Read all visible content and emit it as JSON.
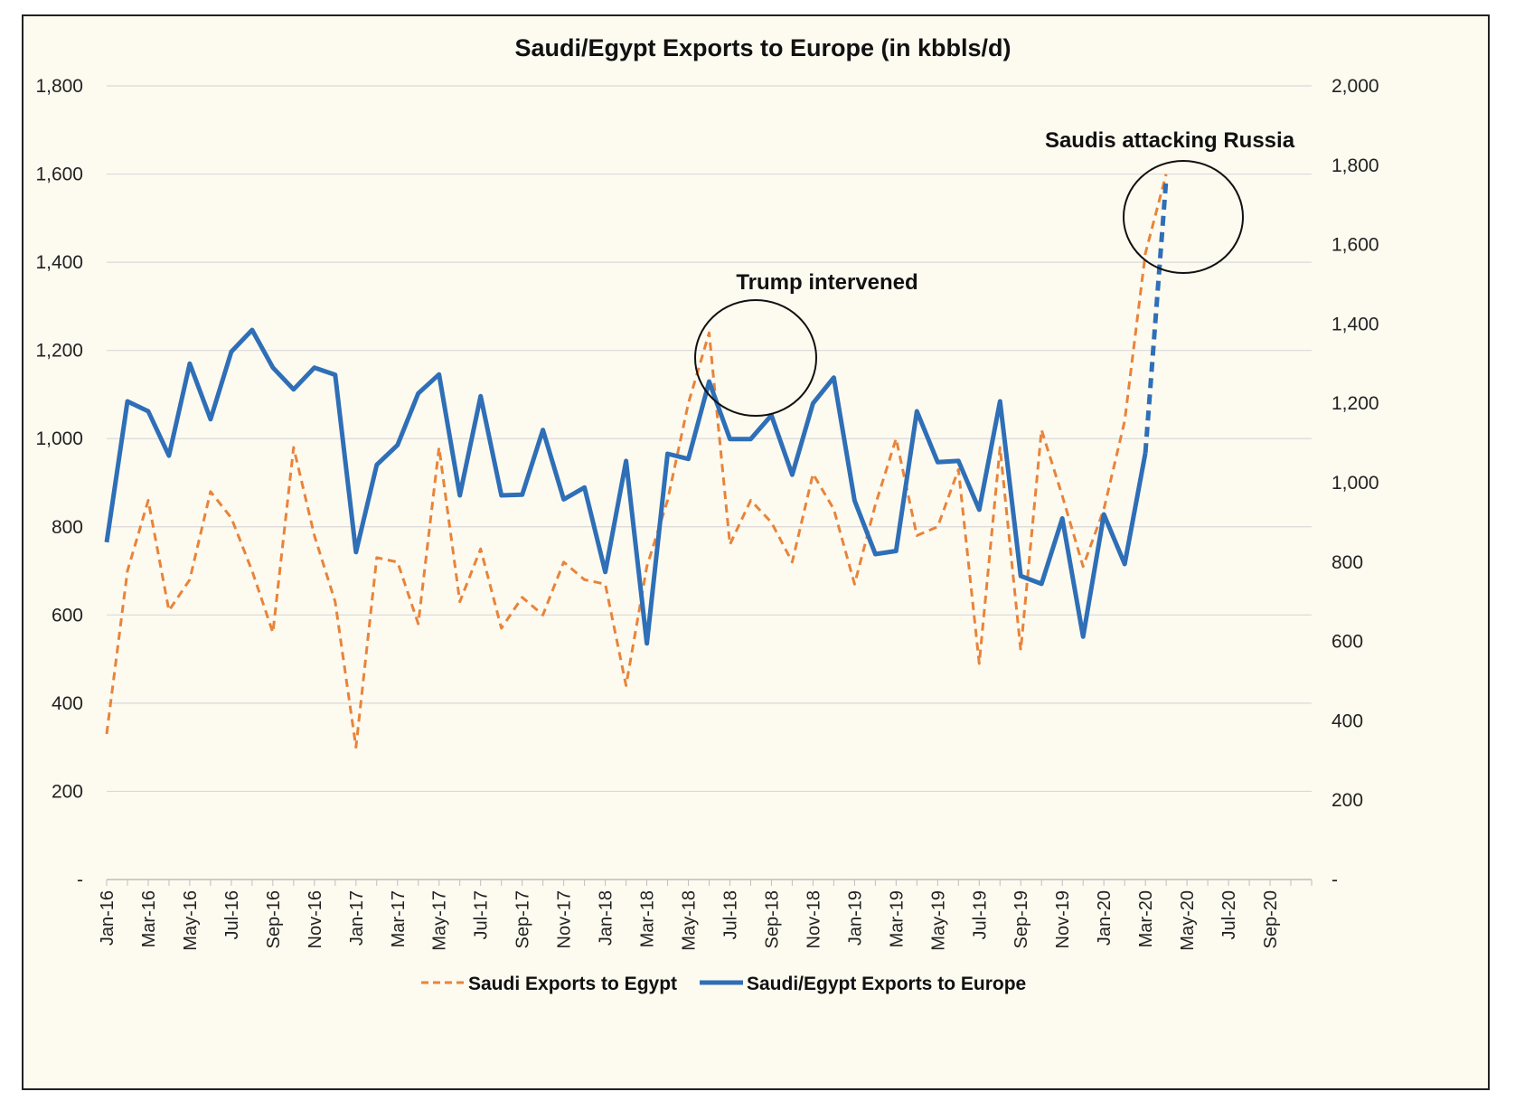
{
  "chart_data": {
    "type": "line",
    "title": "Saudi/Egypt Exports to Europe (in kbbls/d)",
    "x_tick_labels": [
      "Jan-16",
      "Mar-16",
      "May-16",
      "Jul-16",
      "Sep-16",
      "Nov-16",
      "Jan-17",
      "Mar-17",
      "May-17",
      "Jul-17",
      "Sep-17",
      "Nov-17",
      "Jan-18",
      "Mar-18",
      "May-18",
      "Jul-18",
      "Sep-18",
      "Nov-18",
      "Jan-19",
      "Mar-19",
      "May-19",
      "Jul-19",
      "Sep-19",
      "Nov-19",
      "Jan-20",
      "Mar-20",
      "May-20",
      "Jul-20",
      "Sep-20"
    ],
    "x_range": [
      "Jan-16",
      "Oct-20"
    ],
    "y_left": {
      "min": 0,
      "max": 1800,
      "ticks": [
        0,
        200,
        400,
        600,
        800,
        1000,
        1200,
        1400,
        1600,
        1800
      ],
      "tick_labels": [
        "-",
        "200",
        "400",
        "600",
        "800",
        "1,000",
        "1,200",
        "1,400",
        "1,600",
        "1,800"
      ]
    },
    "y_right": {
      "min": 0,
      "max": 2000,
      "ticks": [
        0,
        200,
        400,
        600,
        800,
        1000,
        1200,
        1400,
        1600,
        1800,
        2000
      ],
      "tick_labels": [
        "-",
        "200",
        "400",
        "600",
        "800",
        "1,000",
        "1,200",
        "1,400",
        "1,600",
        "1,800",
        "2,000"
      ]
    },
    "grid": true,
    "legend_position": "bottom",
    "series": [
      {
        "name": "Saudi Exports to Egypt",
        "axis": "left",
        "color": "#E8843A",
        "style": "dashed",
        "values": [
          330,
          700,
          860,
          610,
          680,
          880,
          820,
          700,
          560,
          980,
          780,
          630,
          300,
          730,
          720,
          580,
          980,
          630,
          750,
          570,
          640,
          600,
          720,
          680,
          670,
          440,
          710,
          860,
          1080,
          1240,
          760,
          860,
          810,
          720,
          920,
          840,
          670,
          850,
          1000,
          780,
          800,
          930,
          490,
          980,
          520,
          1020,
          870,
          710,
          840,
          1040,
          1420,
          1600
        ]
      },
      {
        "name": "Saudi/Egypt Exports to Europe",
        "axis": "right",
        "color": "#2E6FB7",
        "style": "solid",
        "values": [
          850,
          1205,
          1180,
          1068,
          1300,
          1160,
          1330,
          1385,
          1290,
          1235,
          1290,
          1272,
          825,
          1045,
          1095,
          1225,
          1273,
          968,
          1218,
          968,
          970,
          1133,
          958,
          988,
          775,
          1055,
          595,
          1073,
          1060,
          1255,
          1110,
          1110,
          1170,
          1020,
          1200,
          1265,
          955,
          820,
          828,
          1180,
          1052,
          1055,
          932,
          1205,
          765,
          745,
          910,
          612,
          920,
          795,
          1075,
          1765
        ],
        "dashed_from_index": 50
      }
    ],
    "annotations": [
      "Trump intervened",
      "Saudis attacking Russia"
    ]
  }
}
